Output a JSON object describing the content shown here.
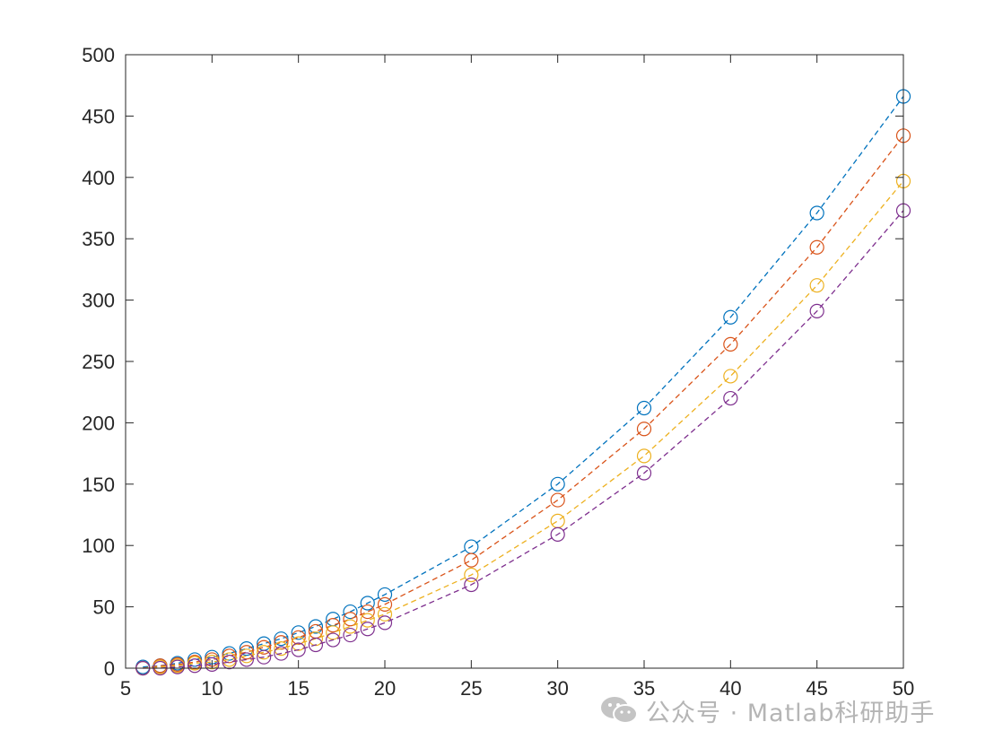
{
  "chart_data": {
    "type": "line",
    "title": "",
    "xlabel": "",
    "ylabel": "",
    "xlim": [
      5,
      50
    ],
    "ylim": [
      0,
      500
    ],
    "xticks": [
      5,
      10,
      15,
      20,
      25,
      30,
      35,
      40,
      45,
      50
    ],
    "yticks": [
      0,
      50,
      100,
      150,
      200,
      250,
      300,
      350,
      400,
      450,
      500
    ],
    "grid": false,
    "marker": "circle",
    "line_style": "dashed",
    "x": [
      6,
      7,
      8,
      9,
      10,
      11,
      12,
      13,
      14,
      15,
      16,
      17,
      18,
      19,
      20,
      25,
      30,
      35,
      40,
      45,
      50
    ],
    "series": [
      {
        "color": "#0072BD",
        "values": [
          1,
          2,
          4,
          7,
          9,
          12,
          16,
          20,
          24,
          29,
          34,
          40,
          46,
          53,
          60,
          99,
          150,
          212,
          286,
          371,
          466
        ]
      },
      {
        "color": "#D95319",
        "values": [
          0,
          2,
          3,
          5,
          7,
          10,
          13,
          17,
          21,
          25,
          30,
          35,
          40,
          46,
          52,
          88,
          137,
          195,
          264,
          343,
          434
        ]
      },
      {
        "color": "#EDB120",
        "values": [
          0,
          1,
          2,
          4,
          5,
          7,
          10,
          13,
          16,
          20,
          24,
          29,
          34,
          39,
          44,
          76,
          120,
          173,
          238,
          312,
          397
        ]
      },
      {
        "color": "#7E2F8E",
        "values": [
          0,
          0,
          1,
          2,
          3,
          5,
          7,
          9,
          12,
          15,
          19,
          23,
          27,
          32,
          37,
          68,
          109,
          159,
          220,
          291,
          373
        ]
      }
    ]
  },
  "watermark": {
    "text": "公众号 · Matlab科研助手",
    "icon": "wechat-icon"
  }
}
